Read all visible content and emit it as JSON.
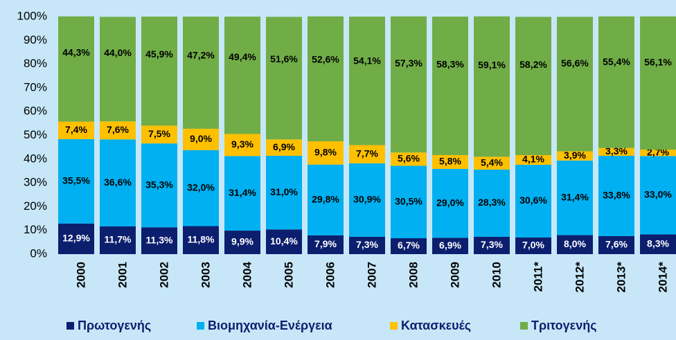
{
  "chart_data": {
    "type": "stacked_bar",
    "categories": [
      "2000",
      "2001",
      "2002",
      "2003",
      "2004",
      "2005",
      "2006",
      "2007",
      "2008",
      "2009",
      "2010",
      "2011*",
      "2012*",
      "2013*",
      "2014*"
    ],
    "series": [
      {
        "name": "Πρωτογενής",
        "color": "#0c1f6e",
        "values": [
          12.9,
          11.7,
          11.3,
          11.8,
          9.9,
          10.4,
          7.9,
          7.3,
          6.7,
          6.9,
          7.3,
          7.0,
          8.0,
          7.6,
          8.3
        ],
        "value_labels": [
          "12,9%",
          "11,7%",
          "11,3%",
          "11,8%",
          "9,9%",
          "10,4%",
          "7,9%",
          "7,3%",
          "6,7%",
          "6,9%",
          "7,3%",
          "7,0%",
          "8,0%",
          "7,6%",
          "8,3%"
        ]
      },
      {
        "name": "Βιομηχανία-Ενέργεια",
        "color": "#00b0f0",
        "values": [
          35.5,
          36.6,
          35.3,
          32.0,
          31.4,
          31.0,
          29.8,
          30.9,
          30.5,
          29.0,
          28.3,
          30.6,
          31.4,
          33.8,
          33.0
        ],
        "value_labels": [
          "35,5%",
          "36,6%",
          "35,3%",
          "32,0%",
          "31,4%",
          "31,0%",
          "29,8%",
          "30,9%",
          "30,5%",
          "29,0%",
          "28,3%",
          "30,6%",
          "31,4%",
          "33,8%",
          "33,0%"
        ]
      },
      {
        "name": "Κατασκευές",
        "color": "#ffc000",
        "values": [
          7.4,
          7.6,
          7.5,
          9.0,
          9.3,
          6.9,
          9.8,
          7.7,
          5.6,
          5.8,
          5.4,
          4.1,
          3.9,
          3.3,
          2.7
        ],
        "value_labels": [
          "7,4%",
          "7,6%",
          "7,5%",
          "9,0%",
          "9,3%",
          "6,9%",
          "9,8%",
          "7,7%",
          "5,6%",
          "5,8%",
          "5,4%",
          "4,1%",
          "3,9%",
          "3,3%",
          "2,7%"
        ]
      },
      {
        "name": "Τριτογενής",
        "color": "#70ad47",
        "values": [
          44.3,
          44.0,
          45.9,
          47.2,
          49.4,
          51.6,
          52.6,
          54.1,
          57.3,
          58.3,
          59.1,
          58.2,
          56.6,
          55.4,
          56.1
        ],
        "value_labels": [
          "44,3%",
          "44,0%",
          "45,9%",
          "47,2%",
          "49,4%",
          "51,6%",
          "52,6%",
          "54,1%",
          "57,3%",
          "58,3%",
          "59,1%",
          "58,2%",
          "56,6%",
          "55,4%",
          "56,1%"
        ]
      }
    ],
    "ylim": [
      0,
      100
    ],
    "yticks": [
      {
        "value": 0,
        "label": "0%"
      },
      {
        "value": 10,
        "label": "10%"
      },
      {
        "value": 20,
        "label": "20%"
      },
      {
        "value": 30,
        "label": "30%"
      },
      {
        "value": 40,
        "label": "40%"
      },
      {
        "value": 50,
        "label": "50%"
      },
      {
        "value": 60,
        "label": "60%"
      },
      {
        "value": 70,
        "label": "70%"
      },
      {
        "value": 80,
        "label": "80%"
      },
      {
        "value": 90,
        "label": "90%"
      },
      {
        "value": 100,
        "label": "100%"
      }
    ],
    "legend": "bottom"
  }
}
